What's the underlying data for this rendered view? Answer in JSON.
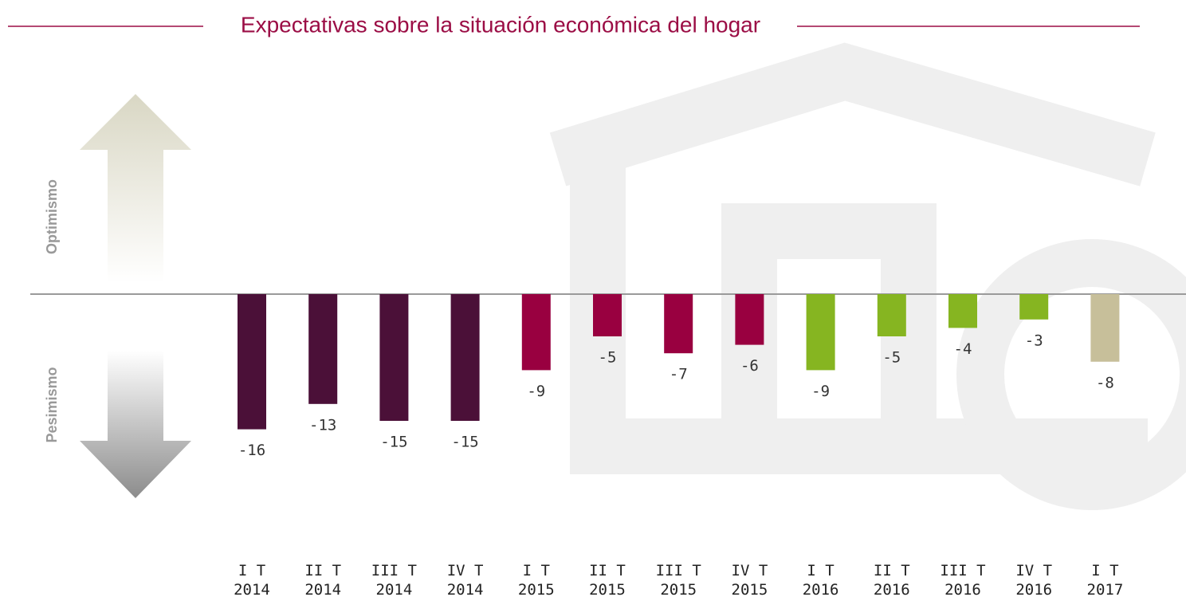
{
  "chart_data": {
    "type": "bar",
    "title": "Expectativas sobre la situación económica del hogar",
    "annotations": [
      "Optimismo",
      "Pesimismo"
    ],
    "categories": [
      "I T\n2014",
      "II T\n2014",
      "III T\n2014",
      "IV T\n2014",
      "I T\n2015",
      "II T\n2015",
      "III T\n2015",
      "IV T\n2015",
      "I T\n2016",
      "II T\n2016",
      "III T\n2016",
      "IV T\n2016",
      "I T\n2017"
    ],
    "values": [
      -16,
      -13,
      -15,
      -15,
      -9,
      -5,
      -7,
      -6,
      -9,
      -5,
      -4,
      -3,
      -8
    ],
    "colors": [
      "#4b1038",
      "#4b1038",
      "#4b1038",
      "#4b1038",
      "#990040",
      "#990040",
      "#990040",
      "#990040",
      "#86b521",
      "#86b521",
      "#86b521",
      "#86b521",
      "#c7bf9a"
    ],
    "ylim": [
      -25,
      25
    ]
  }
}
